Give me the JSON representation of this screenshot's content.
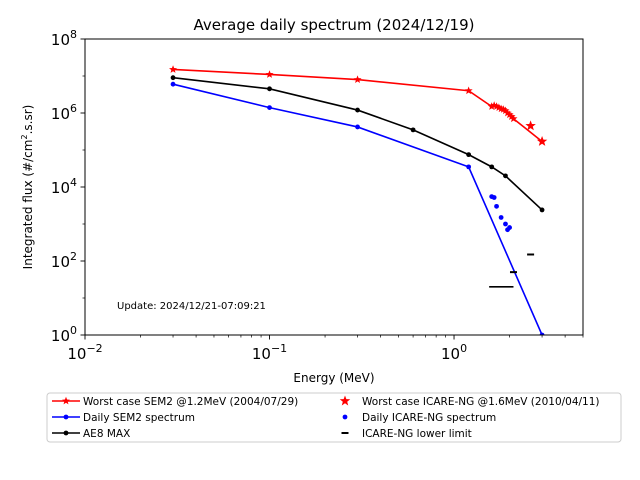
{
  "chart_data": {
    "type": "line",
    "title": "Average daily spectrum (2024/12/19)",
    "xlabel": "Energy (MeV)",
    "ylabel_main": "Integrated flux (#/cm",
    "ylabel_sup": "2",
    "ylabel_tail": ".s.sr)",
    "xscale": "log",
    "yscale": "log",
    "xlim": [
      0.01,
      5
    ],
    "ylim": [
      1,
      100000000
    ],
    "x_ticks": [
      {
        "value": 0.01,
        "base": "10",
        "exp": "−2"
      },
      {
        "value": 0.1,
        "base": "10",
        "exp": "−1"
      },
      {
        "value": 1,
        "base": "10",
        "exp": "0"
      }
    ],
    "y_ticks": [
      {
        "value": 1,
        "base": "10",
        "exp": "0"
      },
      {
        "value": 100,
        "base": "10",
        "exp": "2"
      },
      {
        "value": 10000,
        "base": "10",
        "exp": "4"
      },
      {
        "value": 1000000,
        "base": "10",
        "exp": "6"
      },
      {
        "value": 100000000,
        "base": "10",
        "exp": "8"
      }
    ],
    "grid": false,
    "annotation": "Update: 2024/12/21-07:09:21",
    "legend_position": "below",
    "series": [
      {
        "name": "Worst case SEM2 @1.2MeV (2004/07/29)",
        "kind": "line",
        "marker": "star",
        "color": "#ff0000",
        "x": [
          0.03,
          0.1,
          0.3,
          1.2,
          1.6,
          1.65,
          1.7,
          1.75,
          1.8,
          1.85,
          1.9,
          1.95,
          2.0,
          2.05,
          2.1,
          3.0
        ],
        "y": [
          15000000,
          11000000,
          8000000,
          4000000,
          1500000,
          1600000,
          1500000,
          1400000,
          1300000,
          1250000,
          1150000,
          1000000,
          900000,
          800000,
          700000,
          170000
        ]
      },
      {
        "name": "Daily SEM2 spectrum",
        "kind": "line",
        "marker": "dot",
        "color": "#0000ff",
        "x": [
          0.03,
          0.1,
          0.3,
          1.2,
          3.0
        ],
        "y": [
          6000000,
          1400000,
          420000,
          35000,
          1
        ]
      },
      {
        "name": "AE8 MAX",
        "kind": "line",
        "marker": "dot",
        "color": "#000000",
        "x": [
          0.03,
          0.1,
          0.3,
          0.6,
          1.2,
          1.6,
          1.9,
          3.0
        ],
        "y": [
          9000000,
          4500000,
          1200000,
          350000,
          75000,
          35000,
          20000,
          2400
        ]
      },
      {
        "name": "Worst case ICARE-NG @1.6MeV (2010/04/11)",
        "kind": "scatter",
        "marker": "star",
        "color": "#ff0000",
        "x": [
          2.6,
          3.0
        ],
        "y": [
          450000,
          170000
        ]
      },
      {
        "name": "Daily ICARE-NG spectrum",
        "kind": "scatter",
        "marker": "dot",
        "color": "#0000ff",
        "x": [
          1.6,
          1.65,
          1.7,
          1.8,
          1.9,
          1.95,
          2.0
        ],
        "y": [
          5500,
          5200,
          3000,
          1500,
          1000,
          700,
          800
        ]
      },
      {
        "name": "ICARE-NG lower limit",
        "kind": "scatter",
        "marker": "hline",
        "color": "#000000",
        "x": [
          2.1,
          2.6
        ],
        "y": [
          50,
          150
        ]
      }
    ],
    "extra_segments": [
      {
        "x": [
          1.55,
          2.1
        ],
        "y": [
          20,
          20
        ],
        "color": "#000000"
      }
    ],
    "legend_left": [
      0,
      1,
      2
    ],
    "legend_right": [
      3,
      4,
      5
    ]
  }
}
